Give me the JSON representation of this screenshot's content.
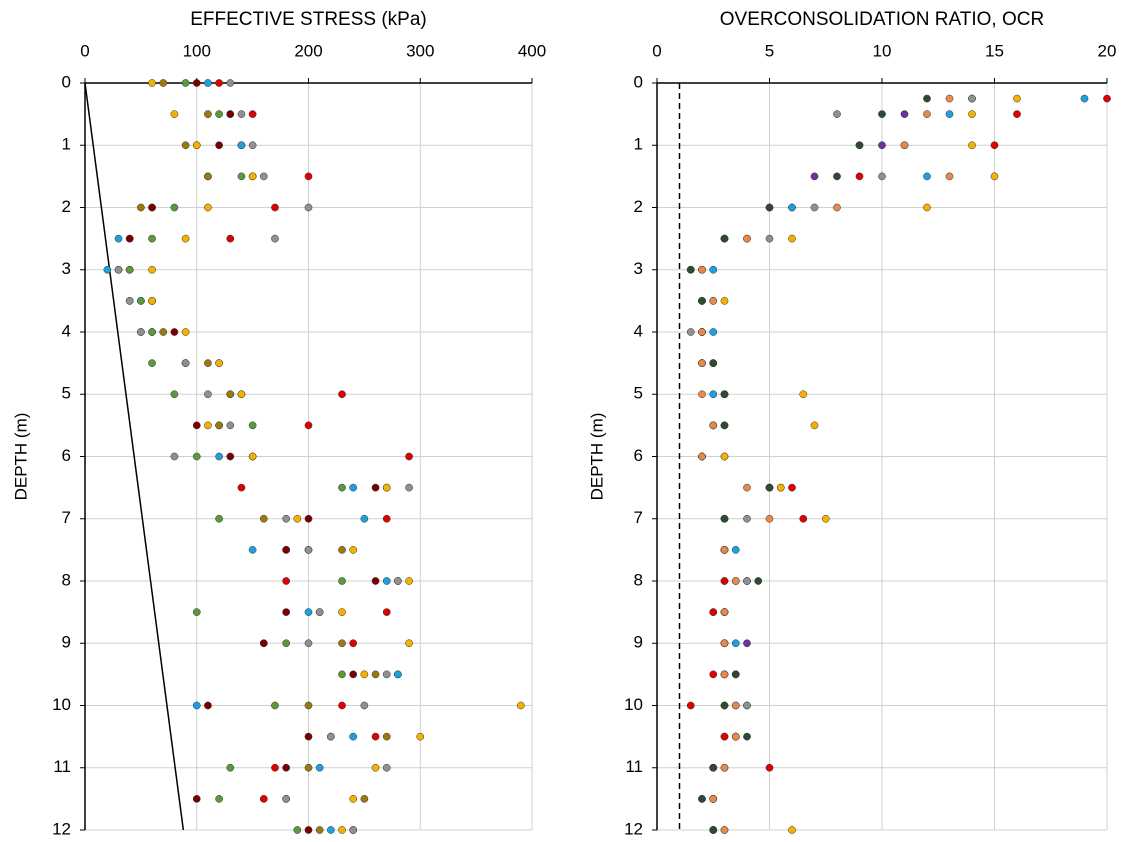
{
  "chart_data": [
    {
      "type": "scatter",
      "title": "EFFECTIVE STRESS (kPa)",
      "y_label": "DEPTH (m)",
      "xlim": [
        0,
        400
      ],
      "xticks": [
        0,
        100,
        200,
        300,
        400
      ],
      "ylim": [
        0,
        12
      ],
      "yticks": [
        0,
        1,
        2,
        3,
        4,
        5,
        6,
        7,
        8,
        9,
        10,
        11,
        12
      ],
      "y_inverted": true,
      "grid": true,
      "reference_line": {
        "x": [
          0,
          88
        ],
        "y": [
          0,
          12
        ],
        "color": "#000000",
        "dashed": false
      },
      "y": [
        0,
        0.5,
        1,
        1.5,
        2,
        2.5,
        3,
        3.5,
        4,
        4.5,
        5,
        5.5,
        6,
        6.5,
        7,
        7.5,
        8,
        8.5,
        9,
        9.5,
        10,
        10.5,
        11,
        11.5,
        12
      ],
      "series": [
        {
          "color": "#e00000",
          "x": [
            120,
            150,
            140,
            200,
            170,
            130,
            40,
            60,
            50,
            90,
            230,
            200,
            290,
            140,
            270,
            180,
            180,
            270,
            240,
            280,
            230,
            260,
            170,
            160,
            240
          ]
        },
        {
          "color": "#1ea0e0",
          "x": [
            110,
            130,
            140,
            110,
            60,
            30,
            20,
            40,
            60,
            90,
            130,
            120,
            120,
            240,
            250,
            150,
            270,
            200,
            160,
            280,
            100,
            240,
            210,
            180,
            220
          ]
        },
        {
          "color": "#9a7a10",
          "x": [
            70,
            110,
            90,
            110,
            50,
            40,
            40,
            60,
            70,
            110,
            130,
            120,
            150,
            270,
            160,
            230,
            280,
            210,
            230,
            260,
            200,
            270,
            200,
            250,
            210
          ]
        },
        {
          "color": "#7a0000",
          "x": [
            100,
            130,
            120,
            150,
            60,
            40,
            30,
            50,
            80,
            120,
            140,
            100,
            130,
            260,
            200,
            180,
            260,
            180,
            160,
            240,
            110,
            200,
            180,
            100,
            200
          ]
        },
        {
          "color": "#5a9a3a",
          "x": [
            90,
            120,
            100,
            140,
            80,
            60,
            40,
            50,
            60,
            60,
            80,
            150,
            100,
            230,
            120,
            200,
            230,
            100,
            180,
            230,
            170,
            220,
            130,
            120,
            190
          ]
        },
        {
          "color": "#909090",
          "x": [
            130,
            140,
            150,
            160,
            200,
            170,
            30,
            40,
            50,
            90,
            110,
            130,
            80,
            290,
            180,
            200,
            280,
            210,
            200,
            270,
            250,
            220,
            270,
            180,
            240
          ]
        },
        {
          "color": "#f5b000",
          "x": [
            60,
            80,
            100,
            150,
            110,
            90,
            60,
            60,
            90,
            120,
            140,
            110,
            150,
            270,
            190,
            240,
            290,
            230,
            290,
            250,
            390,
            300,
            260,
            240,
            230
          ]
        }
      ]
    },
    {
      "type": "scatter",
      "title": "OVERCONSOLIDATION RATIO, OCR",
      "y_label": "DEPTH (m)",
      "xlim": [
        0,
        20
      ],
      "xticks": [
        0,
        5,
        10,
        15,
        20
      ],
      "ylim": [
        0,
        12
      ],
      "yticks": [
        0,
        1,
        2,
        3,
        4,
        5,
        6,
        7,
        8,
        9,
        10,
        11,
        12
      ],
      "y_inverted": true,
      "grid": true,
      "reference_line": {
        "x": [
          1,
          1
        ],
        "y": [
          0,
          12
        ],
        "color": "#000000",
        "dashed": true
      },
      "y": [
        0.25,
        0.5,
        1,
        1.5,
        2,
        2.5,
        3,
        3.5,
        4,
        4.5,
        5,
        5.5,
        6,
        6.5,
        7,
        7.5,
        8,
        8.5,
        9,
        9.5,
        10,
        10.5,
        11,
        11.5,
        12
      ],
      "series": [
        {
          "color": "#7030a0",
          "x": [
            14,
            11,
            10,
            7,
            6,
            3,
            1.5,
            2,
            2,
            2.5,
            3,
            2.5,
            2,
            5.5,
            3,
            3,
            3.5,
            3,
            4,
            3.5,
            4,
            3,
            2.5,
            2.5,
            2.5
          ]
        },
        {
          "color": "#1ea0e0",
          "x": [
            19,
            13,
            11,
            12,
            6,
            4,
            2.5,
            2,
            2.5,
            2,
            2.5,
            2.5,
            2,
            5,
            3,
            3.5,
            3,
            2.5,
            3.5,
            3,
            3,
            3.5,
            2.5,
            2,
            2.5
          ]
        },
        {
          "color": "#e00000",
          "x": [
            20,
            16,
            15,
            9,
            5,
            3,
            1.5,
            2,
            2,
            2,
            3,
            3,
            3,
            6,
            6.5,
            3,
            3,
            2.5,
            3,
            2.5,
            1.5,
            3,
            5,
            2.5,
            2.5
          ]
        },
        {
          "color": "#f5b000",
          "x": [
            16,
            14,
            14,
            15,
            12,
            6,
            2,
            3,
            2,
            2,
            6.5,
            7,
            3,
            5.5,
            7.5,
            3,
            4,
            3,
            3,
            3,
            3.5,
            3.5,
            3,
            2.5,
            6
          ]
        },
        {
          "color": "#909090",
          "x": [
            14,
            8,
            9,
            10,
            7,
            5,
            2,
            2.5,
            1.5,
            2.5,
            3,
            2.5,
            2,
            5,
            4,
            3,
            4,
            3,
            3,
            3.5,
            4,
            3.5,
            2.5,
            2.5,
            3
          ]
        },
        {
          "color": "#2f4a2f",
          "x": [
            12,
            10,
            9,
            8,
            5,
            3,
            1.5,
            2,
            2,
            2.5,
            3,
            3,
            2,
            5,
            3,
            3,
            4.5,
            3,
            3,
            3.5,
            3,
            4,
            2.5,
            2,
            2.5
          ]
        },
        {
          "color": "#e8884a",
          "x": [
            13,
            12,
            11,
            13,
            8,
            4,
            2,
            2.5,
            2,
            2,
            2,
            2.5,
            2,
            4,
            5,
            3,
            3.5,
            3,
            3,
            3,
            3.5,
            3.5,
            3,
            2.5,
            3
          ]
        }
      ]
    }
  ]
}
